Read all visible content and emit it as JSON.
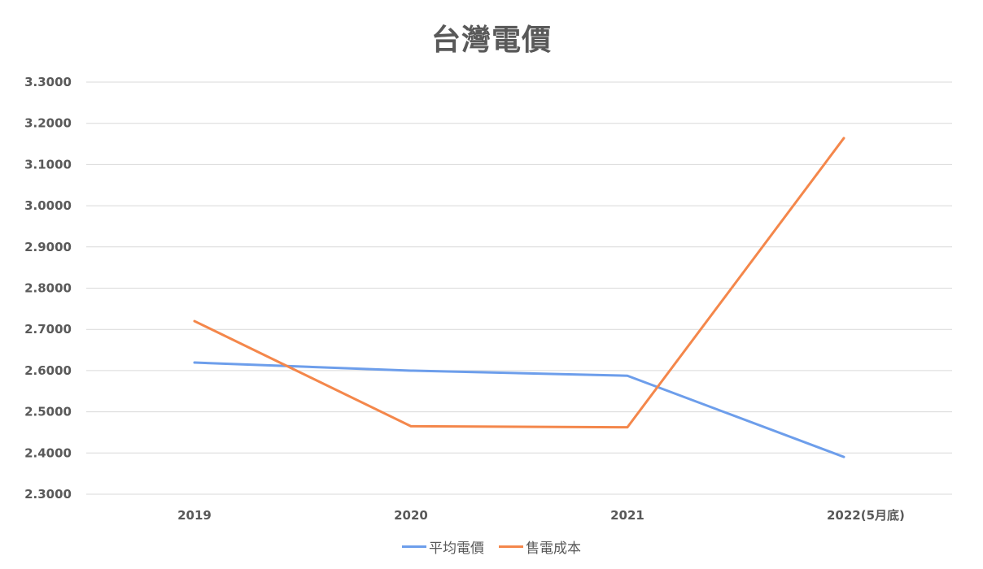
{
  "chart_data": {
    "type": "line",
    "title": "台灣電價",
    "xlabel": "",
    "ylabel": "",
    "categories": [
      "2019",
      "2020",
      "2021",
      "2022(5月底)"
    ],
    "series": [
      {
        "name": "平均電價",
        "color": "#6d9eeb",
        "values": [
          2.6195,
          2.5999,
          2.5875,
          2.3905
        ]
      },
      {
        "name": "售電成本",
        "color": "#f4874b",
        "values": [
          2.72,
          2.465,
          2.4625,
          3.164
        ]
      }
    ],
    "ylim": [
      2.3,
      3.3
    ],
    "yticks": [
      "3.3000",
      "3.2000",
      "3.1000",
      "3.0000",
      "2.9000",
      "2.8000",
      "2.7000",
      "2.6000",
      "2.5000",
      "2.4000",
      "2.3000"
    ],
    "grid": true,
    "legend_position": "bottom"
  },
  "legend": {
    "items": [
      {
        "label": "平均電價",
        "color": "#6d9eeb"
      },
      {
        "label": "售電成本",
        "color": "#f4874b"
      }
    ]
  }
}
